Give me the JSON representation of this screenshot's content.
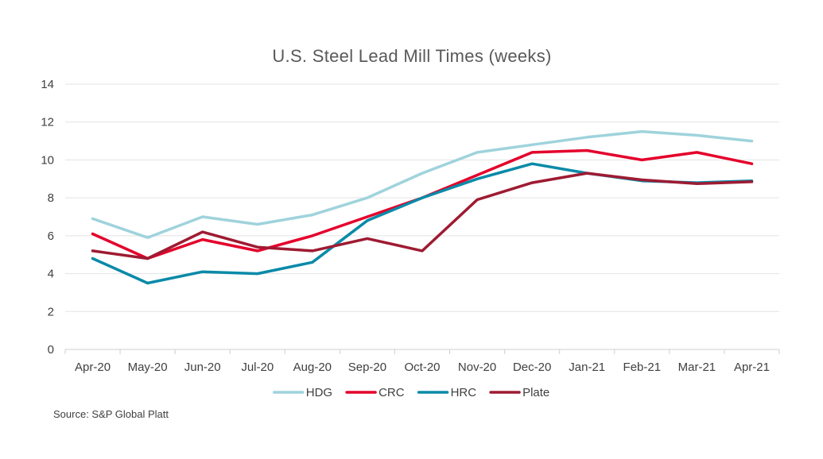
{
  "chart_data": {
    "type": "line",
    "title": "U.S. Steel Lead Mill Times (weeks)",
    "xlabel": "",
    "ylabel": "",
    "categories": [
      "Apr-20",
      "May-20",
      "Jun-20",
      "Jul-20",
      "Aug-20",
      "Sep-20",
      "Oct-20",
      "Nov-20",
      "Dec-20",
      "Jan-21",
      "Feb-21",
      "Mar-21",
      "Apr-21"
    ],
    "ylim": [
      0,
      14
    ],
    "yticks": [
      0,
      2,
      4,
      6,
      8,
      10,
      12,
      14
    ],
    "grid": true,
    "legend_position": "bottom",
    "series": [
      {
        "name": "HDG",
        "color": "#9fd3dc",
        "values": [
          6.9,
          5.9,
          7.0,
          6.6,
          7.1,
          8.0,
          9.3,
          10.4,
          10.8,
          11.2,
          11.5,
          11.3,
          11.0
        ]
      },
      {
        "name": "CRC",
        "color": "#e4002b",
        "values": [
          6.1,
          4.8,
          5.8,
          5.2,
          6.0,
          7.0,
          8.0,
          9.2,
          10.4,
          10.5,
          10.0,
          10.4,
          9.8
        ]
      },
      {
        "name": "HRC",
        "color": "#0a8aa8",
        "values": [
          4.8,
          3.5,
          4.1,
          4.0,
          4.6,
          6.8,
          8.0,
          9.0,
          9.8,
          9.3,
          8.9,
          8.8,
          8.9
        ]
      },
      {
        "name": "Plate",
        "color": "#9e1b32",
        "values": [
          5.2,
          4.8,
          6.2,
          5.4,
          5.2,
          5.85,
          5.2,
          7.9,
          8.8,
          9.3,
          8.95,
          8.75,
          8.85
        ]
      }
    ]
  },
  "source": "Source: S&P Global Platt"
}
